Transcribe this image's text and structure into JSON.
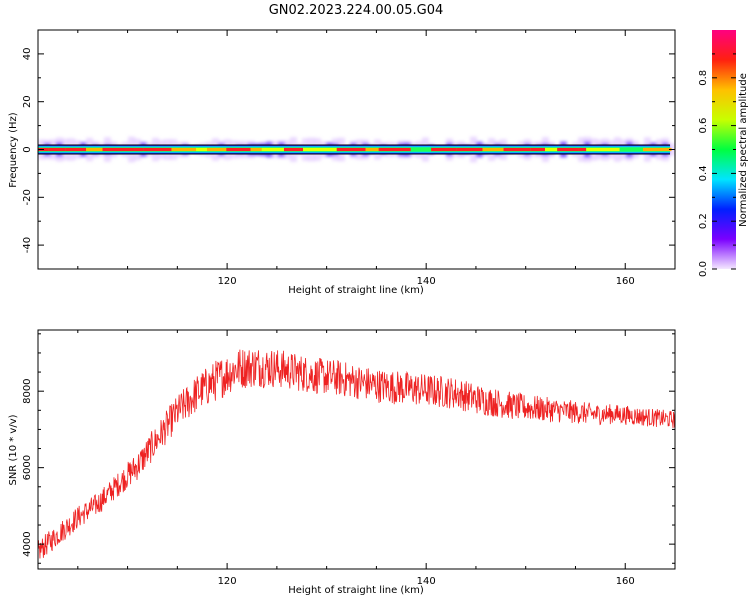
{
  "figure": {
    "title": "GN02.2023.224.00.05.G04"
  },
  "chart_data": [
    {
      "type": "heatmap",
      "xlabel": "Height of straight line (km)",
      "ylabel": "Frequency (Hz)",
      "xlim": [
        101,
        165
      ],
      "ylim": [
        -50,
        50
      ],
      "x_ticks": [
        120,
        140,
        160
      ],
      "y_ticks": [
        -40,
        -20,
        0,
        20,
        40
      ],
      "x_range": [
        101,
        164.5
      ],
      "band_center_hz": 0,
      "colorbar": {
        "label": "Normalized spectral amplitude",
        "range": [
          0,
          1
        ],
        "ticks": [
          0.0,
          0.2,
          0.4,
          0.6,
          0.8
        ],
        "tick_labels": [
          "0.0",
          "0.2",
          "0.4",
          "0.6",
          "0.8"
        ],
        "colors": [
          "#f4e8ff",
          "#7a00ff",
          "#0020ff",
          "#00e5ff",
          "#00ff40",
          "#c8ff00",
          "#ffc000",
          "#ff2010",
          "#ff0080"
        ]
      }
    },
    {
      "type": "line",
      "xlabel": "Height of straight line (km)",
      "ylabel": "SNR (10 * v/v)",
      "xlim": [
        101,
        165
      ],
      "ylim": [
        3350,
        9600
      ],
      "x_ticks": [
        120,
        140,
        160
      ],
      "y_ticks": [
        4000,
        6000,
        8000
      ],
      "color": "#ee2222",
      "x": [
        101,
        103,
        105,
        107,
        109,
        111,
        113,
        115,
        117,
        119,
        121,
        123,
        125,
        127,
        129,
        131,
        133,
        135,
        137,
        139,
        141,
        143,
        145,
        147,
        149,
        151,
        153,
        155,
        157,
        159,
        161,
        163,
        165
      ],
      "y": [
        3800,
        4250,
        4700,
        5050,
        5550,
        6050,
        6750,
        7450,
        7950,
        8300,
        8600,
        8650,
        8600,
        8500,
        8400,
        8350,
        8250,
        8150,
        8100,
        8050,
        8000,
        7950,
        7800,
        7700,
        7600,
        7550,
        7500,
        7450,
        7400,
        7400,
        7350,
        7300,
        7250
      ],
      "noise_amplitude": [
        300,
        300,
        300,
        300,
        320,
        380,
        420,
        450,
        500,
        550,
        550,
        550,
        520,
        500,
        480,
        480,
        460,
        450,
        450,
        440,
        430,
        420,
        400,
        380,
        360,
        340,
        320,
        300,
        280,
        260,
        250,
        240,
        230
      ]
    }
  ]
}
